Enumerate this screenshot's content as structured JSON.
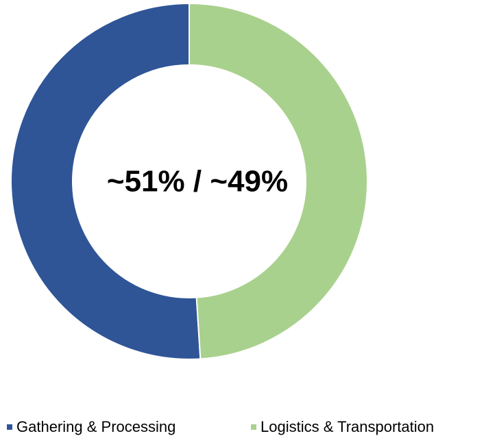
{
  "chart_data": {
    "type": "donut",
    "center_label": "~51% / ~49%",
    "categories": [
      "Gathering & Processing",
      "Logistics & Transportation"
    ],
    "values": [
      51,
      49
    ],
    "colors": [
      "#2f5597",
      "#a9d18e"
    ],
    "legend": "bottom"
  }
}
